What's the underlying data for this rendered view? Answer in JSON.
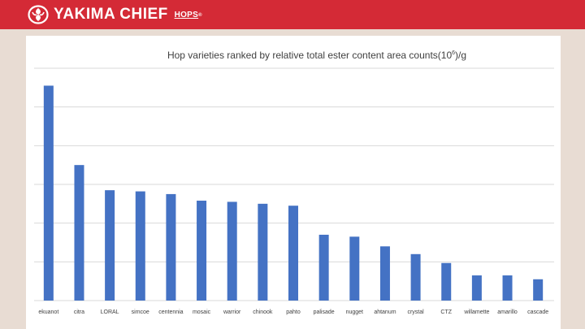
{
  "header": {
    "brand": "YAKIMA CHIEF",
    "brand_suffix": "HOPS",
    "trademark": "®",
    "colors": {
      "bar": "#d42a36",
      "text": "#ffffff"
    }
  },
  "chart_data": {
    "type": "bar",
    "title": "Hop varieties ranked by relative total ester content  area counts(10⁶)/g",
    "title_main": "Hop varieties ranked by relative total ester content  area counts(10",
    "title_exp": "6",
    "title_tail": ")/g",
    "categories": [
      "ekuanot",
      "citra",
      "LORAL",
      "simcoe",
      "centennia",
      "mosaic",
      "warrior",
      "chinook",
      "pahto",
      "palisade",
      "nugget",
      "ahtanum",
      "crystal",
      "CTZ",
      "willamette",
      "amarillo",
      "cascade"
    ],
    "values": [
      5.55,
      3.5,
      2.85,
      2.82,
      2.75,
      2.58,
      2.55,
      2.5,
      2.45,
      1.7,
      1.65,
      1.4,
      1.2,
      0.97,
      0.65,
      0.65,
      0.55
    ],
    "ylim": [
      0,
      6
    ],
    "y_gridlines": [
      0,
      1,
      2,
      3,
      4,
      5,
      6
    ],
    "y_tick_labels_shown": false,
    "grid": true,
    "legend": "none",
    "colors": {
      "bar": "#4472c4",
      "grid": "#d9d9d9",
      "text": "#404040"
    }
  }
}
